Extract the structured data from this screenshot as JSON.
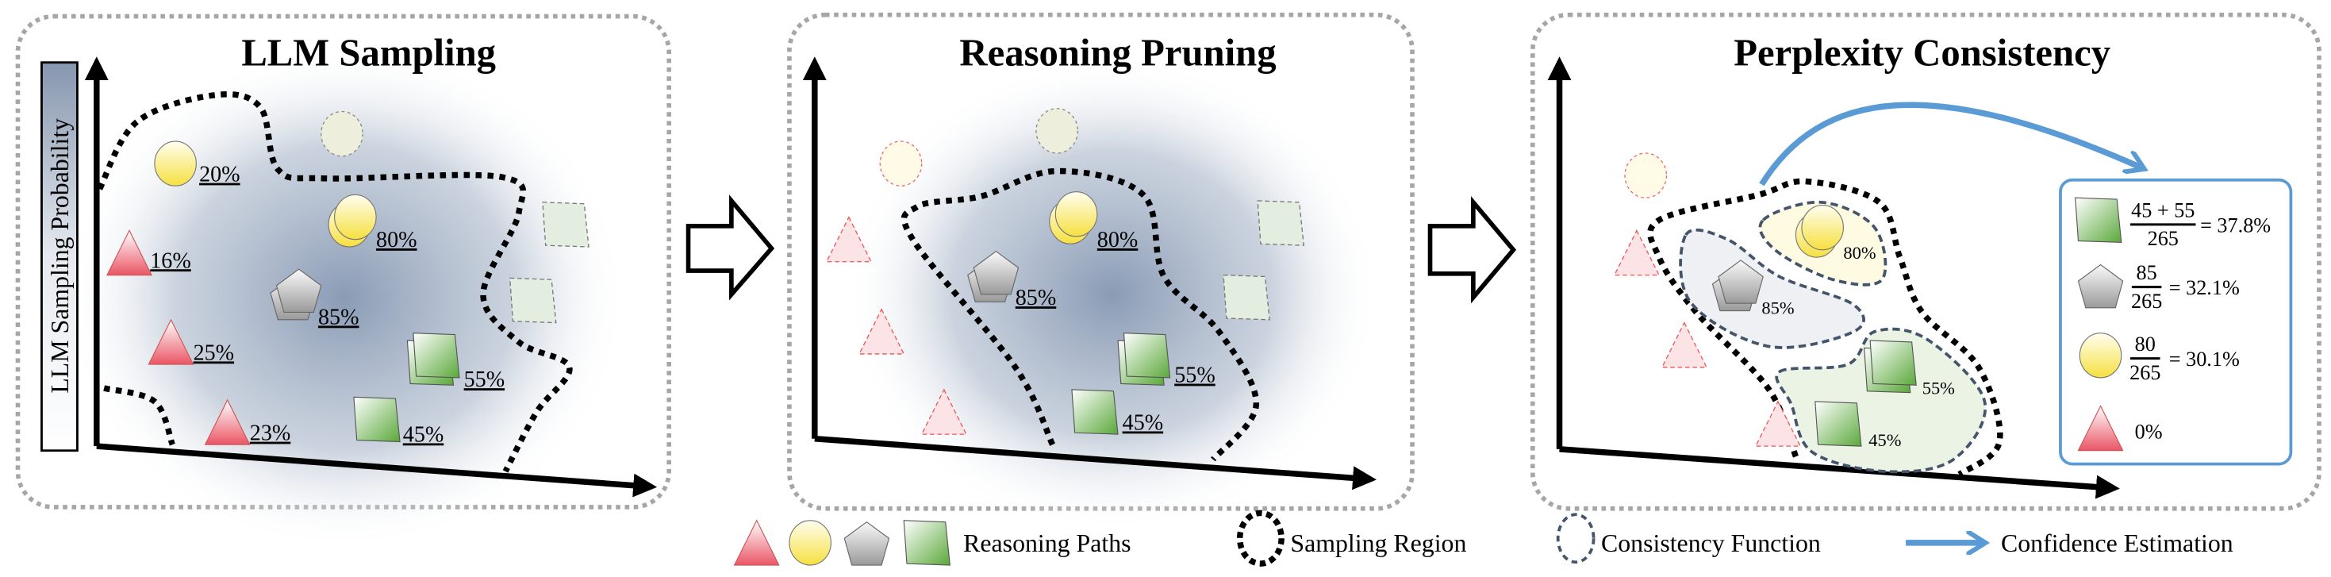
{
  "panels": {
    "sampling": {
      "title": "LLM Sampling",
      "y_axis_label": "LLM Sampling Probability",
      "labels": {
        "yellow_a": "20%",
        "yellow_b": "80%",
        "red_a": "16%",
        "gray": "85%",
        "red_b": "25%",
        "green_a": "55%",
        "red_c": "23%",
        "green_b": "45%"
      }
    },
    "pruning": {
      "title": "Reasoning Pruning",
      "labels": {
        "yellow": "80%",
        "gray": "85%",
        "green_a": "55%",
        "green_b": "45%"
      }
    },
    "consistency": {
      "title": "Perplexity Consistency",
      "labels": {
        "yellow": "80%",
        "gray": "85%",
        "green_a": "55%",
        "green_b": "45%"
      },
      "confidence": [
        {
          "shape": "green-square",
          "numerator": "45 + 55",
          "denominator": "265",
          "result": "= 37.8%"
        },
        {
          "shape": "gray-pentagon",
          "numerator": "85",
          "denominator": "265",
          "result": "= 32.1%"
        },
        {
          "shape": "yellow-circle",
          "numerator": "80",
          "denominator": "265",
          "result": "= 30.1%"
        },
        {
          "shape": "red-triangle",
          "result": "0%"
        }
      ]
    }
  },
  "legend": {
    "reasoning_paths": "Reasoning Paths",
    "sampling_region": "Sampling Region",
    "consistency_function": "Consistency Function",
    "confidence_estimation": "Confidence Estimation"
  },
  "colors": {
    "confidence_arrow": "#5b9bd5",
    "consistency_outline": "#44546a",
    "sampling_shade": "#8a9bb5",
    "panel_border": "#a6a6a6"
  }
}
